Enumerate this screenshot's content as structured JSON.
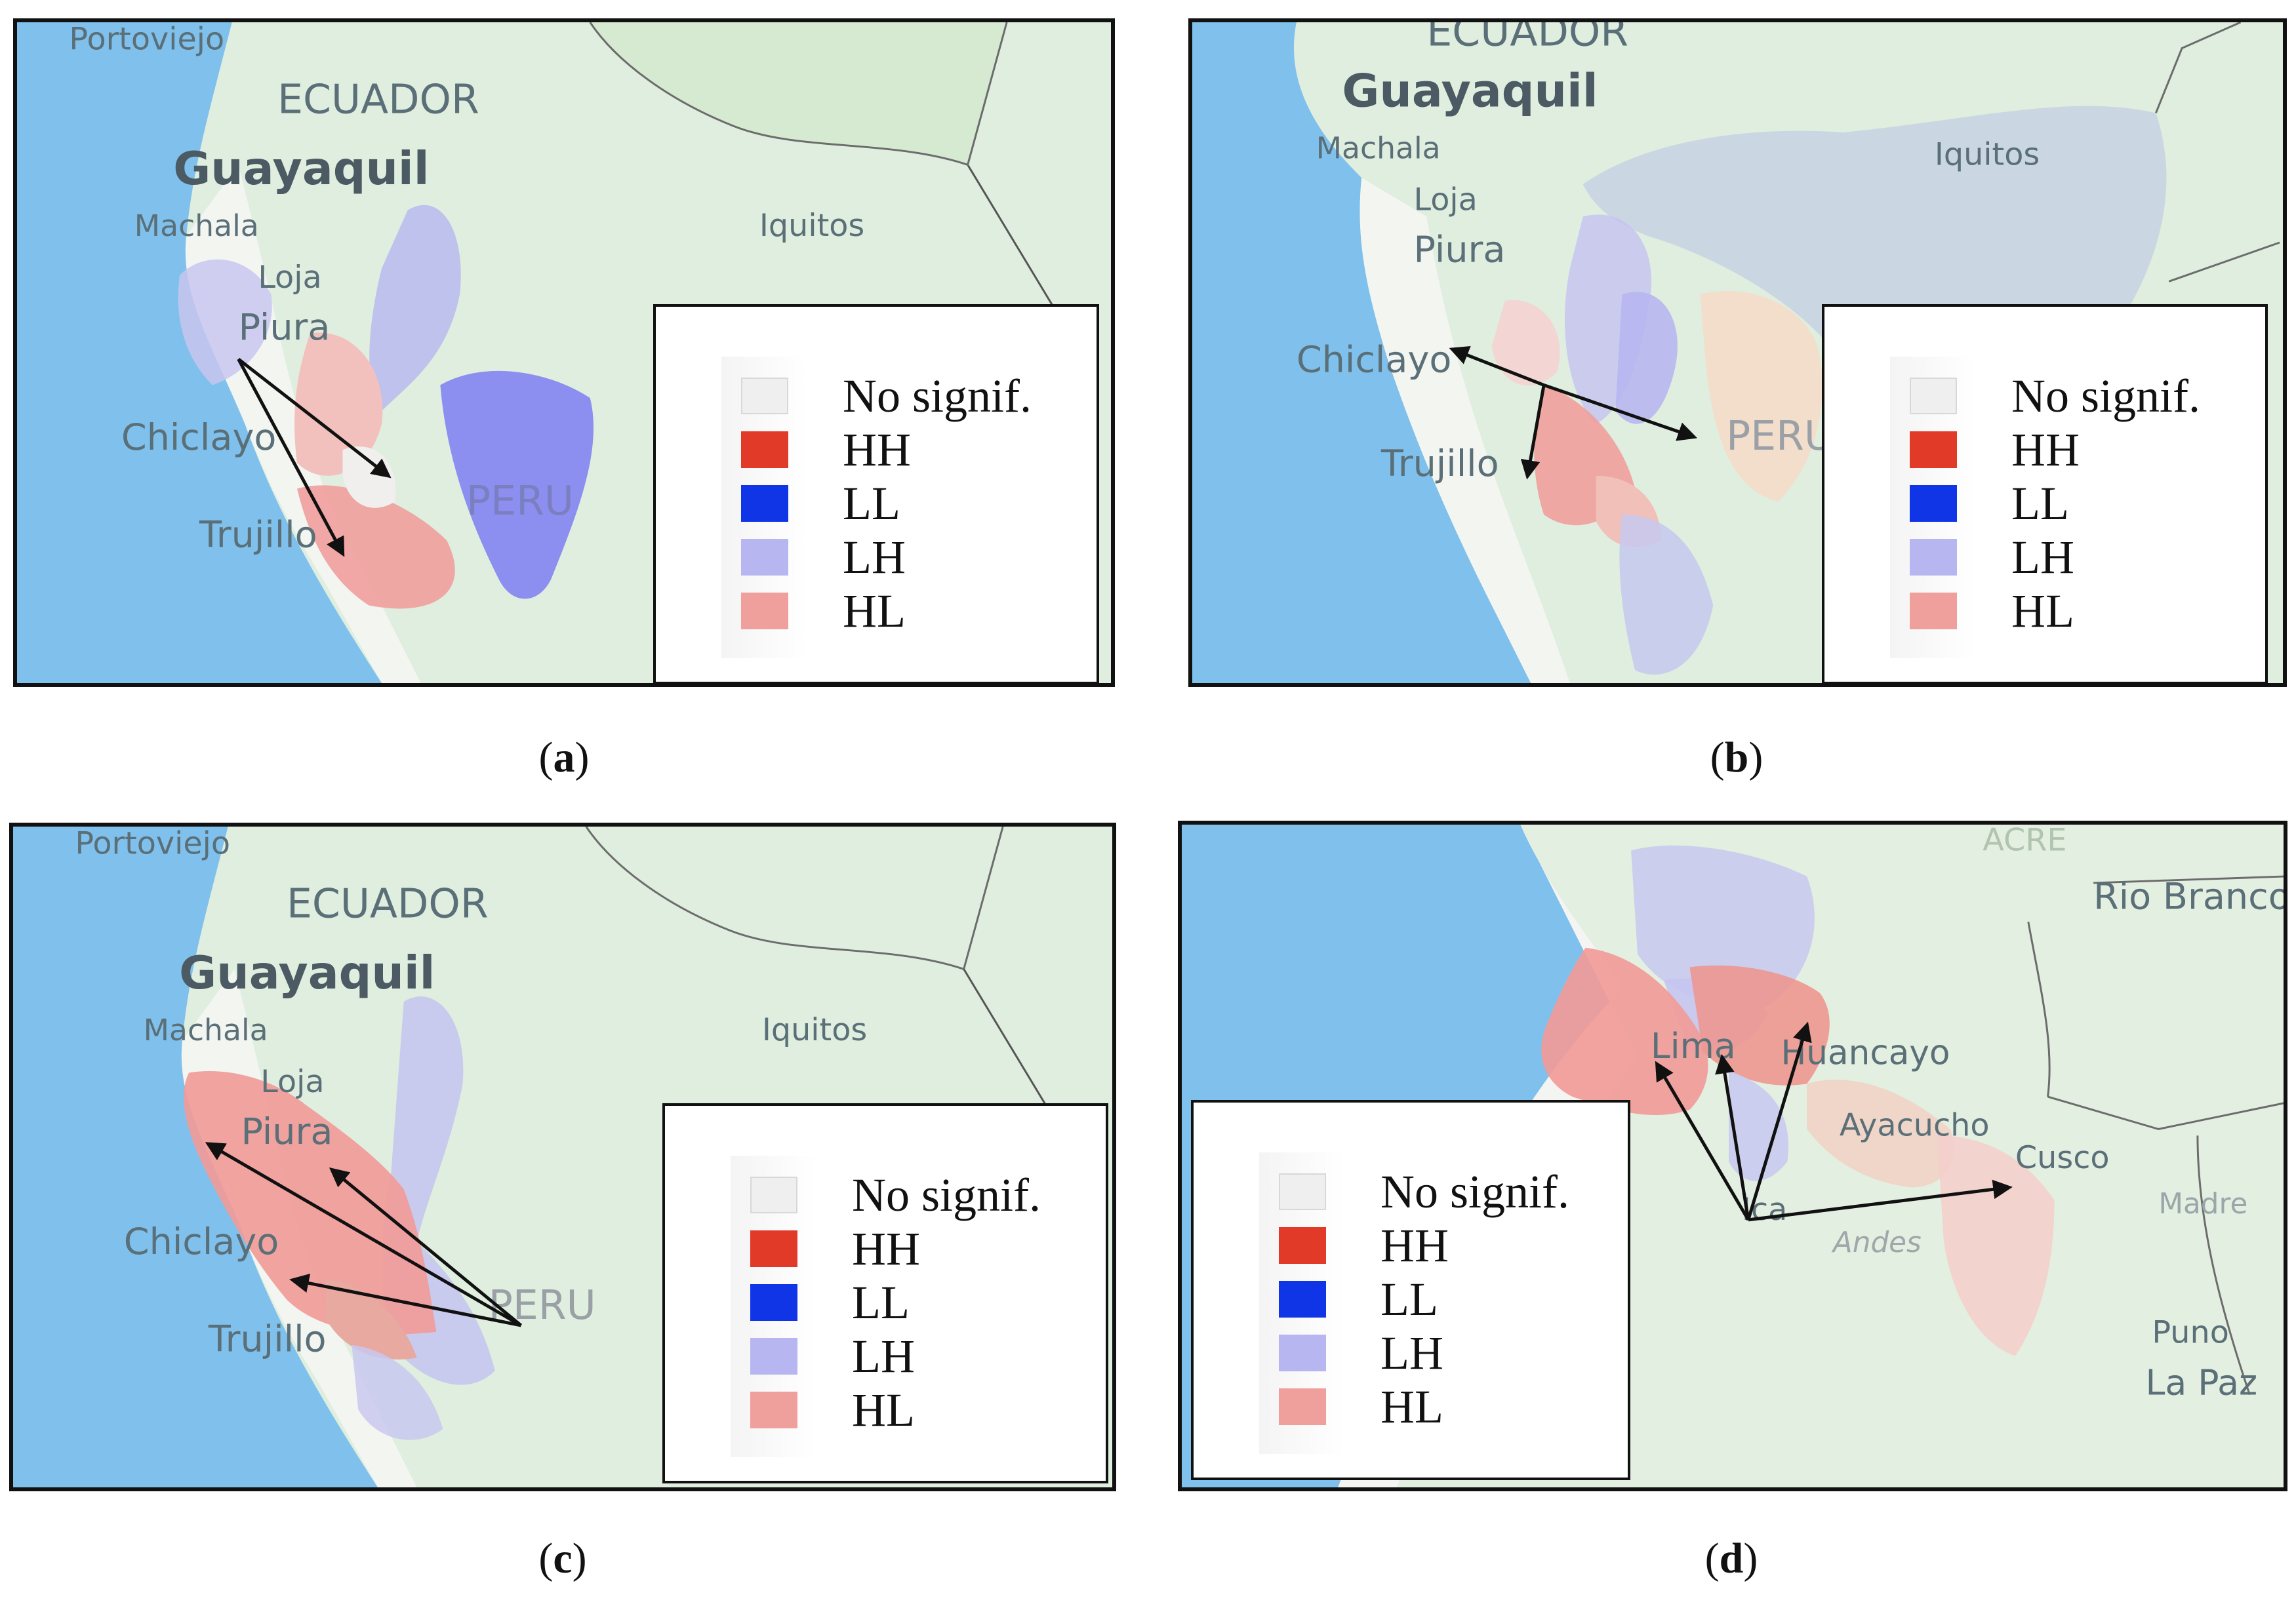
{
  "legend": {
    "items": [
      {
        "key": "nosig",
        "label": "No signif.",
        "color": "#eeeeee"
      },
      {
        "key": "hh",
        "label": "HH",
        "color": "#e23a28"
      },
      {
        "key": "ll",
        "label": "LL",
        "color": "#0f35e6"
      },
      {
        "key": "lh",
        "label": "LH",
        "color": "#b7b6f0"
      },
      {
        "key": "hl",
        "label": "HL",
        "color": "#ef9f9c"
      }
    ]
  },
  "panels": {
    "a": {
      "caption_letter": "a",
      "labels": {
        "portoviejo": "Portoviejo",
        "ecuador": "ECUADOR",
        "guayaquil": "Guayaquil",
        "machala": "Machala",
        "loja": "Loja",
        "piura": "Piura",
        "chiclayo": "Chiclayo",
        "trujillo": "Trujillo",
        "iquitos": "Iquitos",
        "peru": "PERU"
      }
    },
    "b": {
      "caption_letter": "b",
      "labels": {
        "ecuador": "ECUADOR",
        "guayaquil": "Guayaquil",
        "machala": "Machala",
        "loja": "Loja",
        "piura": "Piura",
        "chiclayo": "Chiclayo",
        "trujillo": "Trujillo",
        "iquitos": "Iquitos",
        "peru": "PERU"
      }
    },
    "c": {
      "caption_letter": "c",
      "labels": {
        "portoviejo": "Portoviejo",
        "ecuador": "ECUADOR",
        "guayaquil": "Guayaquil",
        "machala": "Machala",
        "loja": "Loja",
        "piura": "Piura",
        "chiclayo": "Chiclayo",
        "trujillo": "Trujillo",
        "iquitos": "Iquitos",
        "peru": "PERU"
      }
    },
    "d": {
      "caption_letter": "d",
      "labels": {
        "acre": "ACRE",
        "rio_branco": "Rio Branco",
        "lima": "Lima",
        "huancayo": "Huancayo",
        "ayacucho": "Ayacucho",
        "cusco": "Cusco",
        "ica": "Ica",
        "andes": "Andes",
        "puno": "Puno",
        "la_paz": "La Paz",
        "madre": "Madre"
      }
    }
  }
}
